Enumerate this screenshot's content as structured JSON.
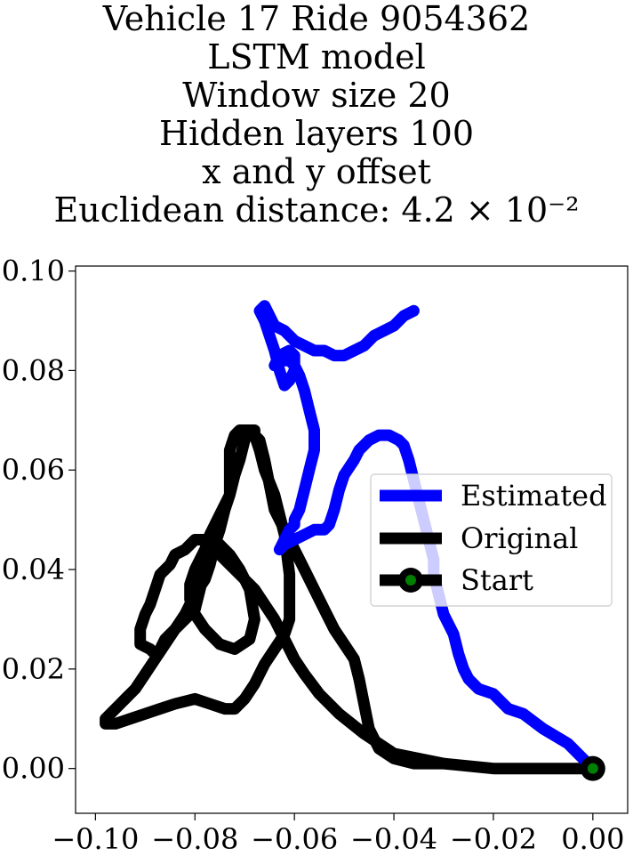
{
  "title_lines": {
    "l1": "Vehicle 17 Ride 9054362",
    "l2": "LSTM model",
    "l3": "Window size 20",
    "l4": "Hidden layers 100",
    "l5": "x and y offset",
    "l6": "Euclidean distance: 4.2 × 10⁻²"
  },
  "chart_data": {
    "type": "line",
    "xlim": [
      -0.104,
      0.007
    ],
    "ylim": [
      -0.009,
      0.101
    ],
    "xticks": [
      "-0.10",
      "-0.08",
      "-0.06",
      "-0.04",
      "-0.02",
      "0.00"
    ],
    "yticks": [
      "0.00",
      "0.02",
      "0.04",
      "0.06",
      "0.08",
      "0.10"
    ],
    "grid": false,
    "legend_position": "center-right",
    "series": [
      {
        "name": "Estimated",
        "color": "#0000ff",
        "x": [
          0.0,
          -0.005,
          -0.01,
          -0.014,
          -0.017,
          -0.02,
          -0.023,
          -0.025,
          -0.026,
          -0.027,
          -0.028,
          -0.03,
          -0.031,
          -0.032,
          -0.032,
          -0.033,
          -0.034,
          -0.035,
          -0.036,
          -0.037,
          -0.038,
          -0.039,
          -0.041,
          -0.043,
          -0.045,
          -0.047,
          -0.048,
          -0.05,
          -0.051,
          -0.052,
          -0.053,
          -0.054,
          -0.056,
          -0.058,
          -0.06,
          -0.062,
          -0.063,
          -0.062,
          -0.061,
          -0.06,
          -0.06,
          -0.059,
          -0.058,
          -0.057,
          -0.056,
          -0.056,
          -0.057,
          -0.058,
          -0.059,
          -0.06,
          -0.061,
          -0.063,
          -0.064,
          -0.063,
          -0.061,
          -0.06,
          -0.06,
          -0.061,
          -0.062,
          -0.063,
          -0.064,
          -0.065,
          -0.066,
          -0.067,
          -0.066,
          -0.065,
          -0.064,
          -0.062,
          -0.06,
          -0.058,
          -0.056,
          -0.054,
          -0.052,
          -0.05,
          -0.048,
          -0.046,
          -0.044,
          -0.042,
          -0.04,
          -0.038,
          -0.036
        ],
        "y": [
          0.0,
          0.005,
          0.008,
          0.011,
          0.012,
          0.015,
          0.016,
          0.018,
          0.02,
          0.023,
          0.027,
          0.031,
          0.035,
          0.039,
          0.042,
          0.046,
          0.05,
          0.054,
          0.058,
          0.062,
          0.065,
          0.066,
          0.067,
          0.067,
          0.066,
          0.064,
          0.062,
          0.059,
          0.056,
          0.052,
          0.049,
          0.048,
          0.048,
          0.047,
          0.046,
          0.045,
          0.044,
          0.046,
          0.048,
          0.049,
          0.05,
          0.052,
          0.056,
          0.06,
          0.064,
          0.068,
          0.072,
          0.076,
          0.079,
          0.081,
          0.082,
          0.082,
          0.081,
          0.083,
          0.084,
          0.083,
          0.08,
          0.078,
          0.077,
          0.08,
          0.084,
          0.087,
          0.09,
          0.092,
          0.093,
          0.091,
          0.089,
          0.088,
          0.086,
          0.085,
          0.084,
          0.084,
          0.083,
          0.083,
          0.084,
          0.085,
          0.087,
          0.088,
          0.089,
          0.091,
          0.092
        ]
      },
      {
        "name": "Original",
        "color": "#000000",
        "x": [
          0.0,
          -0.01,
          -0.02,
          -0.03,
          -0.036,
          -0.04,
          -0.043,
          -0.045,
          -0.046,
          -0.047,
          -0.048,
          -0.05,
          -0.052,
          -0.054,
          -0.056,
          -0.058,
          -0.06,
          -0.062,
          -0.064,
          -0.065,
          -0.066,
          -0.067,
          -0.069,
          -0.071,
          -0.072,
          -0.073,
          -0.073,
          -0.073,
          -0.073,
          -0.074,
          -0.075,
          -0.076,
          -0.077,
          -0.078,
          -0.08,
          -0.082,
          -0.084,
          -0.086,
          -0.088,
          -0.09,
          -0.092,
          -0.094,
          -0.096,
          -0.098,
          -0.098,
          -0.096,
          -0.093,
          -0.09,
          -0.087,
          -0.084,
          -0.08,
          -0.077,
          -0.074,
          -0.072,
          -0.07,
          -0.068,
          -0.066,
          -0.064,
          -0.062,
          -0.061,
          -0.061,
          -0.062,
          -0.064,
          -0.066,
          -0.067,
          -0.068,
          -0.068,
          -0.069,
          -0.07,
          -0.071,
          -0.072,
          -0.073,
          -0.075,
          -0.077,
          -0.078,
          -0.079,
          -0.08,
          -0.081,
          -0.081,
          -0.08,
          -0.078,
          -0.075,
          -0.072,
          -0.069,
          -0.068,
          -0.069,
          -0.071,
          -0.073,
          -0.075,
          -0.076,
          -0.077,
          -0.078,
          -0.079,
          -0.08,
          -0.082,
          -0.084,
          -0.086,
          -0.087,
          -0.088,
          -0.089,
          -0.091,
          -0.091,
          -0.09,
          -0.089,
          -0.088,
          -0.087,
          -0.085,
          -0.084,
          -0.082,
          -0.081,
          -0.08,
          -0.078,
          -0.076,
          -0.073,
          -0.07,
          -0.068,
          -0.066,
          -0.064,
          -0.062,
          -0.06,
          -0.058,
          -0.055,
          -0.051,
          -0.046,
          -0.04,
          -0.03,
          -0.02,
          -0.01,
          0.0
        ],
        "y": [
          0.0,
          0.0,
          0.0,
          0.001,
          0.001,
          0.002,
          0.004,
          0.008,
          0.013,
          0.018,
          0.022,
          0.025,
          0.028,
          0.032,
          0.036,
          0.04,
          0.044,
          0.048,
          0.052,
          0.057,
          0.062,
          0.066,
          0.068,
          0.068,
          0.067,
          0.064,
          0.061,
          0.058,
          0.055,
          0.052,
          0.048,
          0.045,
          0.041,
          0.038,
          0.035,
          0.031,
          0.028,
          0.025,
          0.022,
          0.019,
          0.016,
          0.014,
          0.012,
          0.01,
          0.009,
          0.009,
          0.01,
          0.011,
          0.012,
          0.013,
          0.014,
          0.013,
          0.012,
          0.012,
          0.014,
          0.017,
          0.021,
          0.024,
          0.027,
          0.03,
          0.039,
          0.047,
          0.055,
          0.06,
          0.064,
          0.067,
          0.068,
          0.068,
          0.066,
          0.062,
          0.059,
          0.055,
          0.051,
          0.047,
          0.044,
          0.042,
          0.04,
          0.037,
          0.034,
          0.031,
          0.028,
          0.025,
          0.024,
          0.026,
          0.03,
          0.036,
          0.04,
          0.043,
          0.045,
          0.046,
          0.044,
          0.04,
          0.036,
          0.032,
          0.03,
          0.028,
          0.026,
          0.024,
          0.023,
          0.024,
          0.025,
          0.028,
          0.031,
          0.033,
          0.036,
          0.039,
          0.041,
          0.043,
          0.044,
          0.045,
          0.046,
          0.046,
          0.044,
          0.041,
          0.038,
          0.036,
          0.033,
          0.03,
          0.026,
          0.022,
          0.019,
          0.015,
          0.011,
          0.007,
          0.003,
          0.001,
          0.0,
          0.0,
          0.0
        ]
      },
      {
        "name": "Start",
        "color": "#000000",
        "marker_face": "#008000",
        "x": [
          0.0
        ],
        "y": [
          0.0
        ]
      }
    ]
  }
}
